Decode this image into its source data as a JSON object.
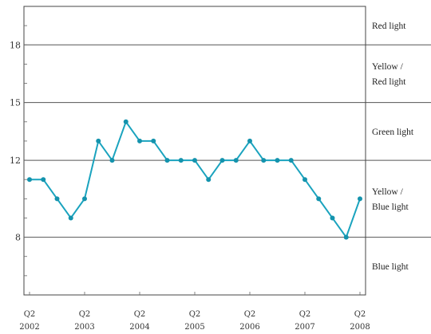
{
  "chart_data": {
    "type": "line",
    "title": "",
    "xlabel": "",
    "ylabel": "",
    "ylim": [
      5,
      20
    ],
    "grid": false,
    "legend": "none",
    "colors": {
      "line": "#1aa3be",
      "marker": "#1493ad",
      "axes": "#444444",
      "threshold": "#555555"
    },
    "y_ticks": [
      "8",
      "12",
      "15",
      "18"
    ],
    "x_ticks": [
      {
        "quarter": "Q2",
        "year": "2002"
      },
      {
        "quarter": "Q2",
        "year": "2003"
      },
      {
        "quarter": "Q2",
        "year": "2004"
      },
      {
        "quarter": "Q2",
        "year": "2005"
      },
      {
        "quarter": "Q2",
        "year": "2006"
      },
      {
        "quarter": "Q2",
        "year": "2007"
      },
      {
        "quarter": "Q2",
        "year": "2008"
      }
    ],
    "thresholds": [
      8,
      12,
      15,
      18
    ],
    "bands": [
      {
        "lines": [
          "Red light"
        ],
        "from": 18,
        "to": 20
      },
      {
        "lines": [
          "Yellow /",
          "Red light"
        ],
        "from": 15,
        "to": 18
      },
      {
        "lines": [
          "Green light"
        ],
        "from": 12,
        "to": 15
      },
      {
        "lines": [
          "Yellow /",
          "Blue light"
        ],
        "from": 8,
        "to": 12
      },
      {
        "lines": [
          "Blue light"
        ],
        "from": 5,
        "to": 8
      }
    ],
    "x": [
      "2002Q2",
      "2002Q3",
      "2002Q4",
      "2003Q1",
      "2003Q2",
      "2003Q3",
      "2003Q4",
      "2004Q1",
      "2004Q2",
      "2004Q3",
      "2004Q4",
      "2005Q1",
      "2005Q2",
      "2005Q3",
      "2005Q4",
      "2006Q1",
      "2006Q2",
      "2006Q3",
      "2006Q4",
      "2007Q1",
      "2007Q2",
      "2007Q3",
      "2007Q4",
      "2008Q1",
      "2008Q2"
    ],
    "series": [
      {
        "values": [
          11,
          11,
          10,
          9,
          10,
          13,
          12,
          14,
          13,
          13,
          12,
          12,
          12,
          11,
          12,
          12,
          13,
          12,
          12,
          12,
          11,
          10,
          9,
          8,
          10
        ]
      }
    ]
  }
}
